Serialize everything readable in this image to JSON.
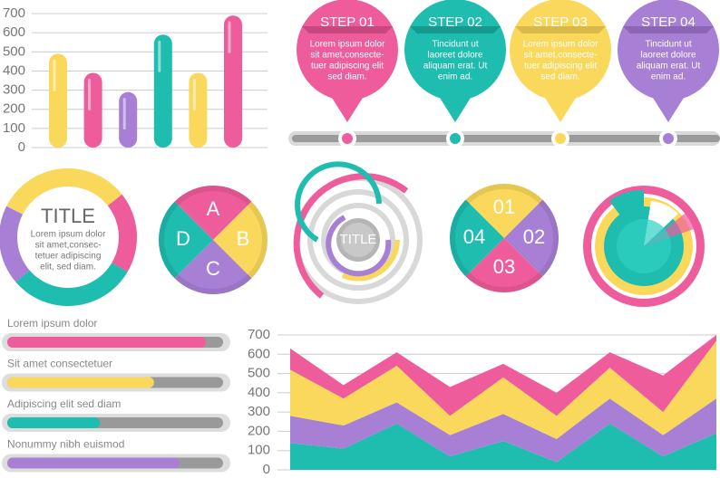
{
  "chart_data": [
    {
      "type": "bar",
      "values": [
        490,
        390,
        290,
        590,
        390,
        690
      ],
      "colors": [
        "#f9d85c",
        "#ef5c9b",
        "#a77fd4",
        "#1fbcb0",
        "#f9d85c",
        "#ef5c9b"
      ],
      "ylim": [
        0,
        700
      ],
      "yticks": [
        0,
        100,
        200,
        300,
        400,
        500,
        600,
        700
      ],
      "grid": true
    },
    {
      "type": "stacked-area",
      "ylim": [
        0,
        700
      ],
      "yticks": [
        0,
        100,
        200,
        300,
        400,
        500,
        600,
        700
      ],
      "grid": true,
      "series": [
        {
          "color": "#1fbcb0",
          "values": [
            140,
            110,
            240,
            70,
            150,
            40,
            240,
            70,
            190
          ]
        },
        {
          "color": "#a77fd4",
          "values": [
            140,
            120,
            110,
            110,
            140,
            120,
            130,
            110,
            180
          ]
        },
        {
          "color": "#f9d85c",
          "values": [
            240,
            140,
            190,
            100,
            190,
            120,
            160,
            120,
            300
          ]
        },
        {
          "color": "#ef5c9b",
          "values": [
            110,
            70,
            70,
            150,
            70,
            120,
            80,
            190,
            30
          ]
        }
      ]
    },
    {
      "type": "pie",
      "categories": [
        "A",
        "B",
        "C",
        "D"
      ],
      "values": [
        25,
        25,
        25,
        25
      ],
      "colors": [
        "#ef5c9b",
        "#f9d85c",
        "#a77fd4",
        "#1fbcb0"
      ]
    },
    {
      "type": "pie",
      "categories": [
        "01",
        "02",
        "03",
        "04"
      ],
      "values": [
        25,
        25,
        25,
        25
      ],
      "colors": [
        "#f9d85c",
        "#a77fd4",
        "#ef5c9b",
        "#1fbcb0"
      ]
    },
    {
      "type": "progress",
      "xlim": [
        0,
        100
      ],
      "categories": [
        "Lorem ipsum dolor",
        "Sit amet consectetuer",
        "Adipiscing elit sed diam",
        "Nonummy nibh euismod"
      ],
      "values": [
        92,
        68,
        43,
        80
      ],
      "colors": [
        "#ef5c9b",
        "#f9d85c",
        "#1fbcb0",
        "#a77fd4"
      ]
    }
  ],
  "steps": [
    {
      "title": "STEP 01",
      "lines": [
        "Lorem ipsum dolor",
        "sit amet,consecte-",
        "tuer adipiscing elit",
        "sed diam."
      ]
    },
    {
      "title": "STEP 02",
      "lines": [
        "Tincidunt ut",
        "laoreet dolore",
        "aliquam erat. Ut",
        "enim ad."
      ]
    },
    {
      "title": "STEP 03",
      "lines": [
        "Lorem ipsum dolor",
        "sit amet,consecte-",
        "tuer adipiscing elit",
        "sed diam."
      ]
    },
    {
      "title": "STEP 04",
      "lines": [
        "Tincidunt ut",
        "laoreet dolore",
        "aliquam erat. Ut",
        "enim ad."
      ]
    }
  ],
  "donut": {
    "title": "TITLE",
    "lines": [
      "Lorem ipsum dolor",
      "sit amet,consec-",
      "tetuer adipiscing",
      "elit, sed diam."
    ]
  },
  "rings": {
    "title": "TITLE"
  }
}
